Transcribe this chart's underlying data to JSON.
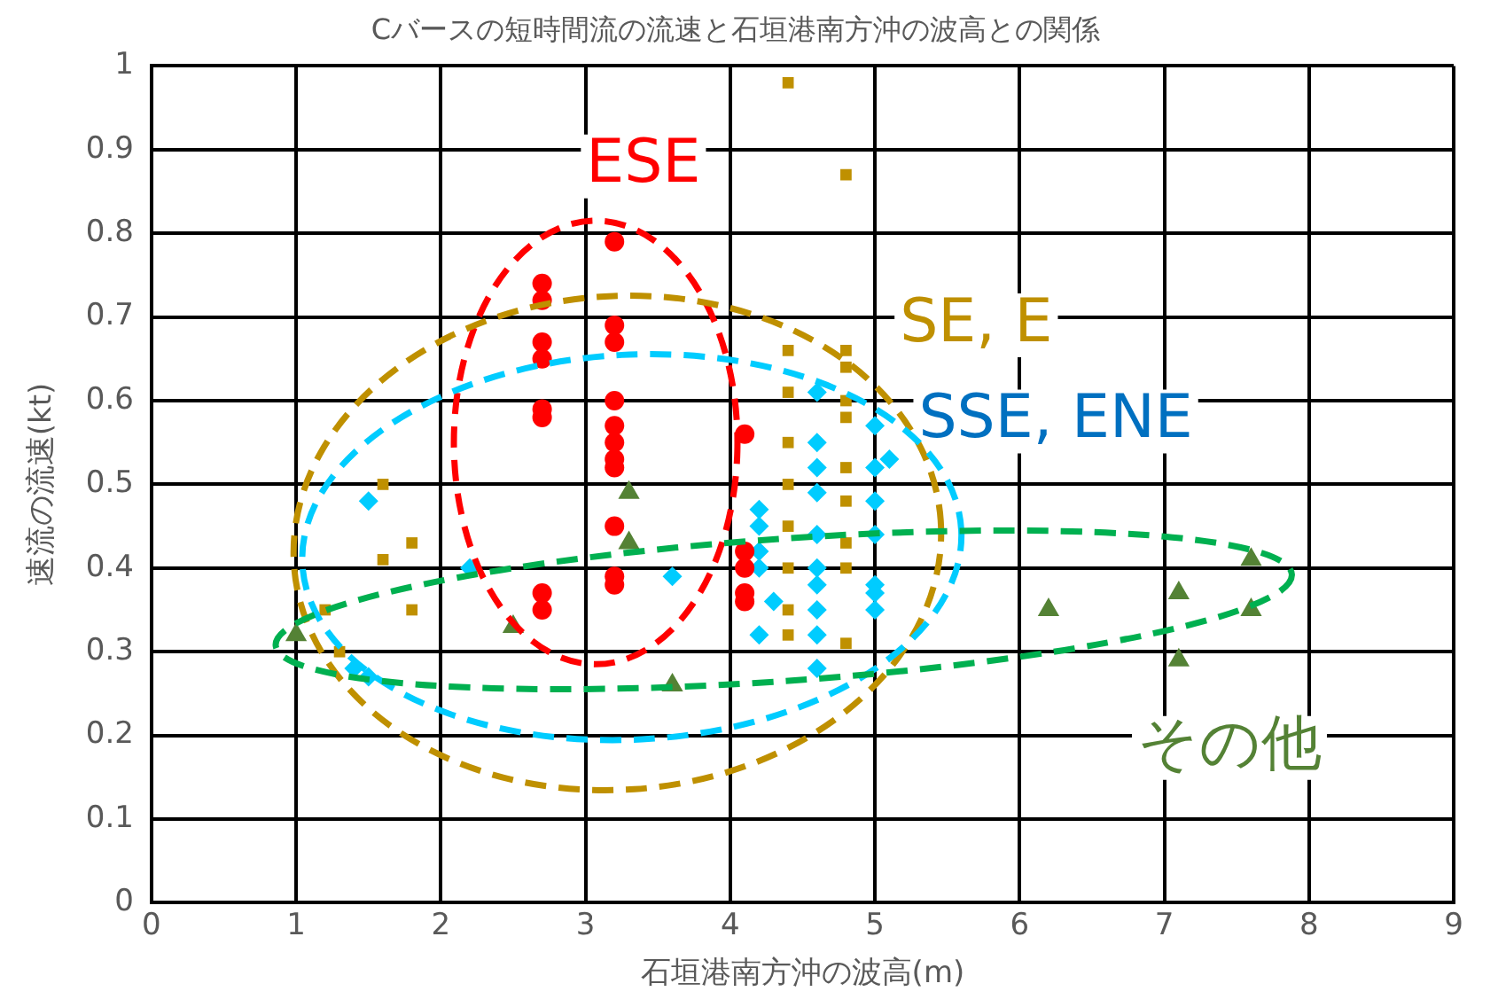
{
  "chart_data": {
    "type": "scatter",
    "title": "Cバースの短時間流の流速と石垣港南方沖の波高との関係",
    "xlabel": "石垣港南方沖の波高(m)",
    "ylabel": "速流の流速(kt)",
    "xlim": [
      0,
      9
    ],
    "xticks": [
      0,
      1,
      2,
      3,
      4,
      5,
      6,
      7,
      8,
      9
    ],
    "ylim": [
      0,
      1
    ],
    "yticks": [
      0,
      0.1,
      0.2,
      0.3,
      0.4,
      0.5,
      0.6,
      0.7,
      0.8,
      0.9,
      1
    ],
    "grid": true,
    "legend": false,
    "series": [
      {
        "name": "ESE",
        "color": "#ff0000",
        "marker": "circle",
        "x": [
          2.7,
          2.7,
          2.7,
          2.7,
          2.7,
          2.7,
          2.7,
          2.7,
          3.2,
          3.2,
          3.2,
          3.2,
          3.2,
          3.2,
          3.2,
          3.2,
          3.2,
          3.2,
          3.2,
          4.1,
          4.1,
          4.1,
          4.1,
          4.1
        ],
        "values": [
          0.74,
          0.72,
          0.67,
          0.65,
          0.59,
          0.58,
          0.37,
          0.35,
          0.79,
          0.69,
          0.67,
          0.6,
          0.57,
          0.55,
          0.53,
          0.52,
          0.45,
          0.39,
          0.38,
          0.56,
          0.42,
          0.4,
          0.37,
          0.36
        ]
      },
      {
        "name": "SE, E",
        "color": "#bf9000",
        "marker": "square",
        "x": [
          1.2,
          1.3,
          1.6,
          1.6,
          1.8,
          1.8,
          4.4,
          4.8,
          4.4,
          4.4,
          4.4,
          4.4,
          4.4,
          4.4,
          4.4,
          4.4,
          4.8,
          4.8,
          4.8,
          4.8,
          4.8,
          4.8,
          4.8,
          4.8,
          4.8
        ],
        "values": [
          0.35,
          0.3,
          0.5,
          0.41,
          0.43,
          0.35,
          0.98,
          0.87,
          0.66,
          0.61,
          0.55,
          0.5,
          0.45,
          0.4,
          0.35,
          0.32,
          0.66,
          0.64,
          0.6,
          0.58,
          0.52,
          0.48,
          0.43,
          0.4,
          0.31
        ]
      },
      {
        "name": "SSE, ENE",
        "color": "#00ccff",
        "marker": "diamond",
        "x": [
          1.5,
          1.4,
          1.5,
          2.2,
          3.6,
          4.2,
          4.2,
          4.2,
          4.2,
          4.2,
          4.3,
          4.6,
          4.6,
          4.6,
          4.6,
          4.6,
          4.6,
          4.6,
          4.6,
          4.6,
          4.6,
          5,
          5,
          5,
          5,
          5,
          5,
          5,
          5.1
        ],
        "values": [
          0.48,
          0.28,
          0.27,
          0.4,
          0.39,
          0.47,
          0.45,
          0.42,
          0.4,
          0.32,
          0.36,
          0.61,
          0.55,
          0.52,
          0.49,
          0.44,
          0.4,
          0.38,
          0.35,
          0.32,
          0.28,
          0.57,
          0.52,
          0.48,
          0.44,
          0.38,
          0.37,
          0.35,
          0.53
        ]
      },
      {
        "name": "その他",
        "color": "#548235",
        "marker": "triangle",
        "x": [
          1,
          2.5,
          3.3,
          3.3,
          3.6,
          6.2,
          7.1,
          7.1,
          7.6,
          7.6
        ],
        "values": [
          0.32,
          0.33,
          0.49,
          0.43,
          0.26,
          0.35,
          0.37,
          0.29,
          0.41,
          0.35
        ]
      }
    ]
  }
}
